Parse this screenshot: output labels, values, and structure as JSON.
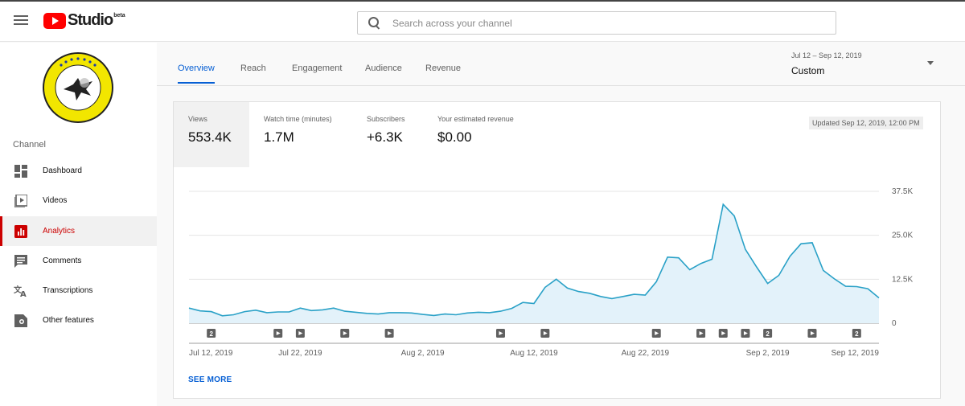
{
  "header": {
    "logo_text": "Studio",
    "logo_badge": "beta",
    "search_placeholder": "Search across your channel"
  },
  "sidebar": {
    "section_label": "Channel",
    "items": [
      {
        "label": "Dashboard",
        "icon": "dashboard-icon"
      },
      {
        "label": "Videos",
        "icon": "videos-icon"
      },
      {
        "label": "Analytics",
        "icon": "analytics-icon",
        "active": true
      },
      {
        "label": "Comments",
        "icon": "comments-icon"
      },
      {
        "label": "Transcriptions",
        "icon": "translate-icon"
      },
      {
        "label": "Other features",
        "icon": "other-features-icon"
      }
    ]
  },
  "tabs": [
    {
      "label": "Overview",
      "active": true
    },
    {
      "label": "Reach"
    },
    {
      "label": "Engagement"
    },
    {
      "label": "Audience"
    },
    {
      "label": "Revenue"
    }
  ],
  "date_range": {
    "dates": "Jul 12 – Sep 12, 2019",
    "label": "Custom"
  },
  "metrics": [
    {
      "label": "Views",
      "value": "553.4K"
    },
    {
      "label": "Watch time (minutes)",
      "value": "1.7M"
    },
    {
      "label": "Subscribers",
      "value": "+6.3K"
    },
    {
      "label": "Your estimated revenue",
      "value": "$0.00"
    }
  ],
  "updated": "Updated Sep 12, 2019, 12:00 PM",
  "see_more": "SEE MORE",
  "colors": {
    "accent_blue": "#065fd4",
    "line": "#2aa1c7",
    "fill": "#e3f2fa",
    "active_red": "#cc0000"
  },
  "chart_data": {
    "type": "area",
    "y_ticks": [
      "0",
      "12.5K",
      "25.0K",
      "37.5K"
    ],
    "ylim": [
      0,
      37500
    ],
    "x_tick_labels": [
      "Jul 12, 2019",
      "Jul 22, 2019",
      "Aug 2, 2019",
      "Aug 12, 2019",
      "Aug 22, 2019",
      "Sep 2, 2019",
      "Sep 12, 2019"
    ],
    "x_tick_days": [
      0,
      10,
      21,
      31,
      41,
      52,
      62
    ],
    "series": [
      {
        "values": [
          4300,
          3500,
          3300,
          2100,
          2400,
          3300,
          3700,
          3000,
          3200,
          3200,
          4300,
          3600,
          3800,
          4300,
          3400,
          3100,
          2800,
          2600,
          3000,
          3000,
          2900,
          2500,
          2200,
          2600,
          2400,
          2900,
          3100,
          3000,
          3400,
          4200,
          5900,
          5600,
          10200,
          12500,
          10000,
          9000,
          8500,
          7600,
          7000,
          7600,
          8200,
          8000,
          11800,
          18800,
          18600,
          15200,
          17000,
          18200,
          33800,
          30500,
          21000,
          16000,
          11300,
          13600,
          19000,
          22600,
          22900,
          15000,
          12600,
          10500,
          10400,
          9800,
          7200
        ]
      }
    ],
    "markers": [
      {
        "day": 2,
        "label": "2"
      },
      {
        "day": 8,
        "label": ""
      },
      {
        "day": 10,
        "label": ""
      },
      {
        "day": 14,
        "label": ""
      },
      {
        "day": 18,
        "label": ""
      },
      {
        "day": 28,
        "label": ""
      },
      {
        "day": 32,
        "label": ""
      },
      {
        "day": 42,
        "label": ""
      },
      {
        "day": 46,
        "label": ""
      },
      {
        "day": 48,
        "label": ""
      },
      {
        "day": 50,
        "label": ""
      },
      {
        "day": 52,
        "label": "2"
      },
      {
        "day": 56,
        "label": ""
      },
      {
        "day": 60,
        "label": "2"
      }
    ]
  }
}
